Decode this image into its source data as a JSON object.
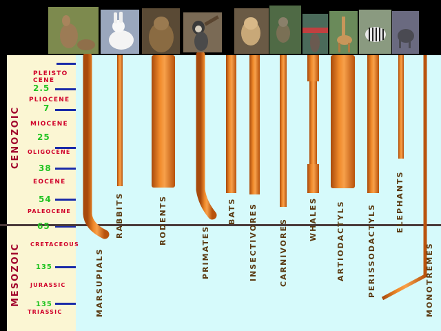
{
  "eras": {
    "cenozoic": "CENOZOIC",
    "mesozoic": "MESOZOIC"
  },
  "epochs": {
    "pleistocene_1": "PLEISTO",
    "pleistocene_2": "CENE",
    "pliocene": "PLIOCENE",
    "miocene": "MIOCENE",
    "oligocene": "OLIGOCENE",
    "eocene": "EOCENE",
    "paleocene": "PALEOCENE",
    "cretaceous": "CRETACEOUS",
    "jurassic": "JURASSIC",
    "triassic": "TRIASSIC"
  },
  "ages": {
    "a2_5": "2.5",
    "a7": "7",
    "a25": "25",
    "a38": "38",
    "a54": "54",
    "a65": "65",
    "a135_upper": "135",
    "a135_lower": "135"
  },
  "orders": {
    "marsupials": "MARSUPIALS",
    "rabbits": "RABBITS",
    "rodents": "RODENTS",
    "primates": "PRIMATES",
    "bats": "BATS",
    "insectivores": "INSECTIVORES",
    "carnivores": "CARNIVORES",
    "whales": "WHALES",
    "artiodactyls": "ARTIODACTYLS",
    "perissodactyls": "PERISSODACTYLS",
    "elephants": "ELEPHANTS",
    "monotremes": "MONOTREMES"
  },
  "photos": {
    "kangaroo": "kangaroo-photo",
    "rabbit": "rabbit-photo",
    "groundhog": "rodent-photo",
    "monkey": "primate-photo",
    "mongoose": "carnivore-photo",
    "lemur": "primate-photo",
    "whale": "whale-photo",
    "giraffe": "artiodactyl-photo",
    "zebra": "perissodactyl-photo",
    "elephant": "elephant-photo"
  },
  "colors": {
    "cream_panel": "#fbf6d3",
    "blue_panel": "#d6fafb",
    "branch_orange": "#e8741a",
    "tick_blue": "#1a2aa8",
    "boundary_line": "#4a3a3a"
  }
}
